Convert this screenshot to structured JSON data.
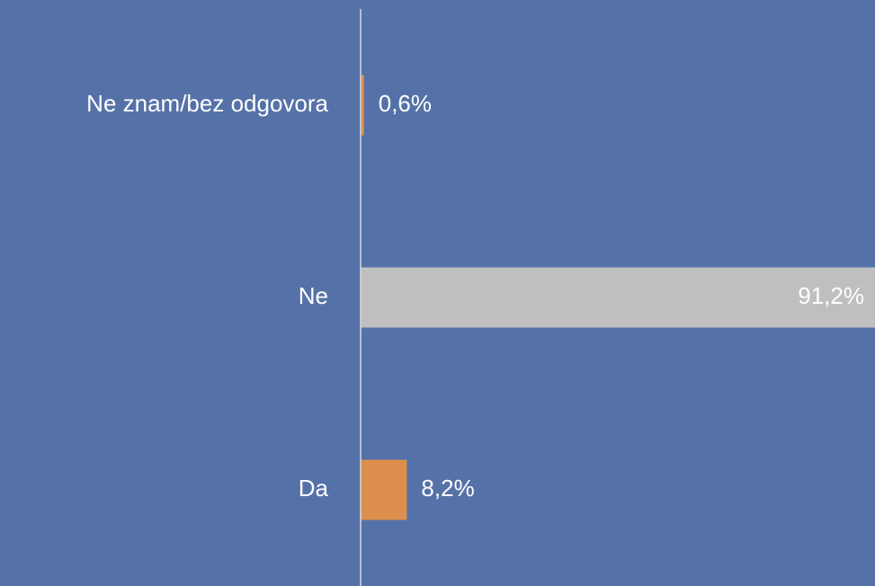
{
  "chart_data": {
    "type": "barh",
    "categories": [
      "Ne znam/bez odgovora",
      "Ne",
      "Da"
    ],
    "values": [
      0.6,
      91.2,
      8.2
    ],
    "value_labels": [
      "0,6%",
      "91,2%",
      "8,2%"
    ],
    "colors": [
      "#dc8f4c",
      "#bfbfbf",
      "#dc8f4c"
    ],
    "xlim": [
      0,
      91.2
    ]
  }
}
